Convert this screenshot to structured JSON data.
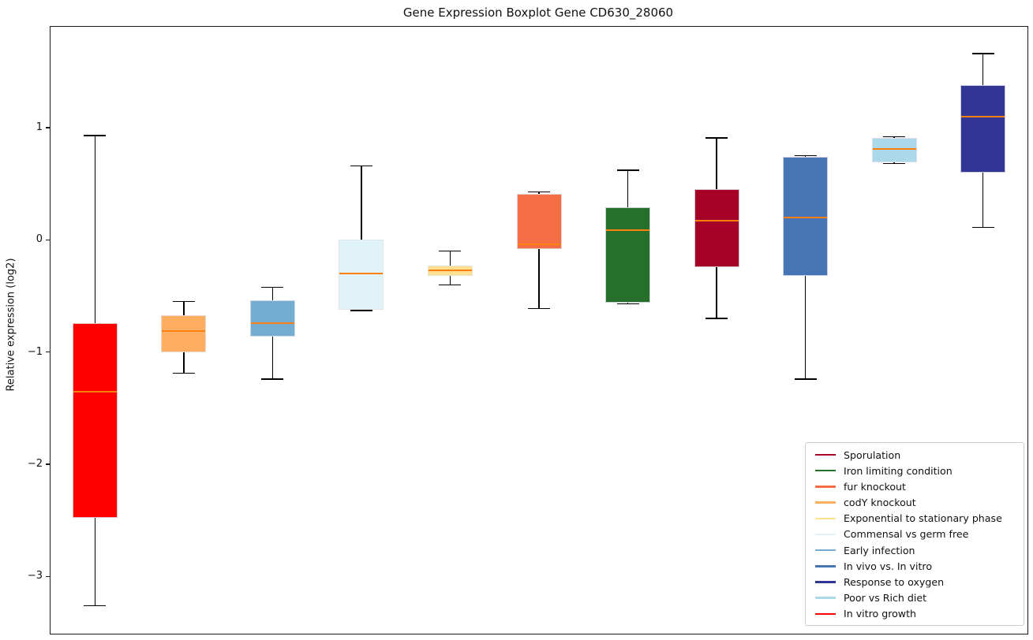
{
  "chart_data": {
    "type": "boxplot",
    "title": "Gene Expression Boxplot Gene CD630_28060",
    "ylabel": "Relative expression (log2)",
    "xlabel": "",
    "ylim": [
      -3.51,
      1.9
    ],
    "grid": false,
    "legend_position": "lower right",
    "median_color": "#ff7f0e",
    "axis_color": "#1a1a1a",
    "yticks": [
      {
        "value": 1,
        "label": "1"
      },
      {
        "value": 0,
        "label": "0"
      },
      {
        "value": -1,
        "label": "−1"
      },
      {
        "value": -2,
        "label": "−2"
      },
      {
        "value": -3,
        "label": "−3"
      }
    ],
    "boxes": [
      {
        "label": "In vitro growth",
        "color": "#ff0000",
        "whisker_low": -3.26,
        "q1": -2.48,
        "median": -1.35,
        "q3": -0.74,
        "whisker_high": 0.93
      },
      {
        "label": "codY knockout",
        "color": "#fdae61",
        "whisker_low": -1.19,
        "q1": -1.0,
        "median": -0.81,
        "q3": -0.67,
        "whisker_high": -0.55
      },
      {
        "label": "Early infection",
        "color": "#74add1",
        "whisker_low": -1.24,
        "q1": -0.86,
        "median": -0.74,
        "q3": -0.54,
        "whisker_high": -0.42
      },
      {
        "label": "Commensal vs germ free",
        "color": "#e0f3f8",
        "whisker_low": -0.63,
        "q1": -0.62,
        "median": -0.3,
        "q3": 0.0,
        "whisker_high": 0.66
      },
      {
        "label": "Exponential to stationary phase",
        "color": "#fee090",
        "whisker_low": -0.4,
        "q1": -0.32,
        "median": -0.27,
        "q3": -0.23,
        "whisker_high": -0.1
      },
      {
        "label": "fur knockout",
        "color": "#f46d43",
        "whisker_low": -0.61,
        "q1": -0.08,
        "median": -0.04,
        "q3": 0.41,
        "whisker_high": 0.43
      },
      {
        "label": "Iron limiting condition",
        "color": "#26702c",
        "whisker_low": -0.57,
        "q1": -0.56,
        "median": 0.09,
        "q3": 0.29,
        "whisker_high": 0.62
      },
      {
        "label": "Sporulation",
        "color": "#a50026",
        "whisker_low": -0.7,
        "q1": -0.24,
        "median": 0.17,
        "q3": 0.45,
        "whisker_high": 0.91
      },
      {
        "label": "In vivo vs. In vitro",
        "color": "#4575b4",
        "whisker_low": -1.24,
        "q1": -0.32,
        "median": 0.2,
        "q3": 0.74,
        "whisker_high": 0.75
      },
      {
        "label": "Poor vs Rich diet",
        "color": "#abd9e9",
        "whisker_low": 0.68,
        "q1": 0.69,
        "median": 0.81,
        "q3": 0.91,
        "whisker_high": 0.92
      },
      {
        "label": "Response to oxygen",
        "color": "#313695",
        "whisker_low": 0.11,
        "q1": 0.6,
        "median": 1.1,
        "q3": 1.38,
        "whisker_high": 1.66
      }
    ],
    "legend_labels": [
      "Sporulation",
      "Iron limiting condition",
      "fur knockout",
      "codY knockout",
      "Exponential to stationary phase",
      "Commensal vs germ free",
      "Early infection",
      "In vivo vs. In vitro",
      "Response to oxygen",
      "Poor vs Rich diet",
      "In vitro growth"
    ]
  }
}
